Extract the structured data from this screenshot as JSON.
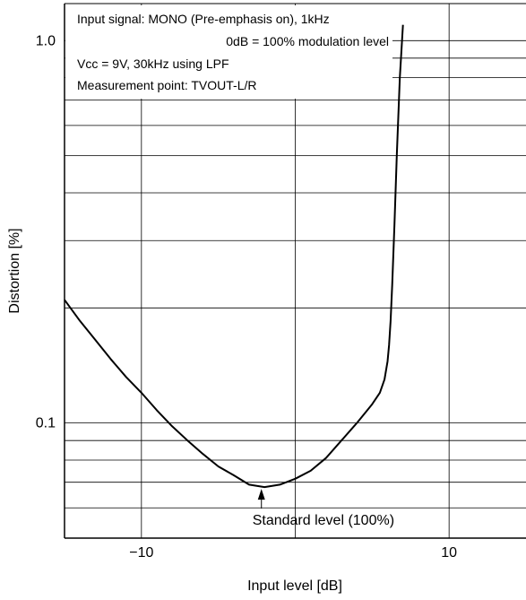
{
  "chart_data": {
    "type": "line",
    "title": "",
    "xlabel": "Input level [dB]",
    "ylabel": "Distortion [%]",
    "xlim": [
      -15,
      15
    ],
    "ylim": [
      0.05,
      1.25
    ],
    "yscale": "log",
    "grid": true,
    "x_ticks": [
      {
        "value": -10,
        "label": "−10"
      },
      {
        "value": 0,
        "label": ""
      },
      {
        "value": 10,
        "label": "10"
      }
    ],
    "y_ticks": [
      {
        "value": 0.1,
        "label": "0.1"
      },
      {
        "value": 1.0,
        "label": "1.0"
      }
    ],
    "y_minor_grid": [
      0.06,
      0.07,
      0.08,
      0.09,
      0.2,
      0.3,
      0.4,
      0.5,
      0.6,
      0.7,
      0.8,
      0.9
    ],
    "notes": [
      "Input signal: MONO (Pre-emphasis on), 1kHz",
      "0dB = 100% modulation level",
      "Vcc = 9V, 30kHz using LPF",
      "Measurement point: TVOUT-L/R"
    ],
    "annotation": {
      "text": "Standard level (100%)",
      "x": -2.2,
      "y": 0.068
    },
    "series": [
      {
        "color": "#000000",
        "x": [
          -15,
          -14,
          -13,
          -12,
          -11,
          -10,
          -9,
          -8,
          -7,
          -6,
          -5,
          -4,
          -3,
          -2,
          -1,
          0,
          1,
          2,
          3,
          4,
          5,
          5.5,
          5.8,
          6.0,
          6.1,
          6.2,
          6.3,
          6.45,
          6.6,
          6.8,
          7.0
        ],
        "y": [
          0.21,
          0.185,
          0.165,
          0.147,
          0.132,
          0.12,
          0.108,
          0.098,
          0.09,
          0.083,
          0.077,
          0.073,
          0.069,
          0.068,
          0.069,
          0.0715,
          0.075,
          0.081,
          0.09,
          0.1,
          0.112,
          0.12,
          0.13,
          0.145,
          0.16,
          0.185,
          0.23,
          0.33,
          0.5,
          0.8,
          1.1
        ]
      }
    ]
  }
}
